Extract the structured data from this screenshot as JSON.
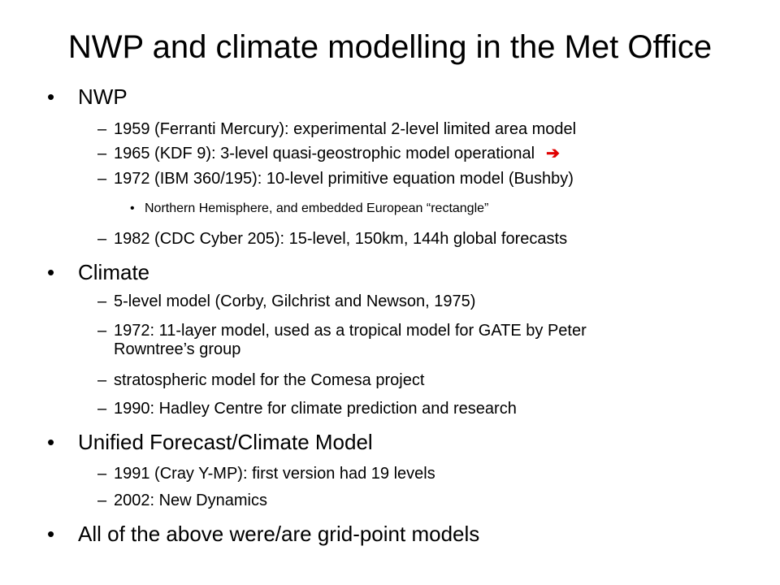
{
  "slide": {
    "title": "NWP and climate modelling in the Met Office",
    "bullet_char": "•",
    "dash_char": "–",
    "arrow_char": "➔",
    "arrow_color": "#e00000",
    "nwp": {
      "label": "NWP",
      "items": [
        "1959 (Ferranti Mercury): experimental 2-level limited area model",
        "1965 (KDF 9): 3-level quasi-geostrophic model operational",
        "1972 (IBM 360/195): 10-level primitive equation model (Bushby)",
        "1982 (CDC Cyber 205): 15-level, 150km, 144h global forecasts"
      ],
      "subitem": "Northern Hemisphere, and embedded European “rectangle”"
    },
    "climate": {
      "label": "Climate",
      "items": [
        "5-level model (Corby, Gilchrist and Newson, 1975)",
        "1972: 11-layer model, used as a tropical model for GATE by Peter Rowntree’s group",
        "stratospheric model for the Comesa project",
        "1990: Hadley Centre for climate prediction and research"
      ]
    },
    "unified": {
      "label": "Unified Forecast/Climate Model",
      "items": [
        "1991 (Cray Y-MP): first version had 19 levels",
        "2002: New Dynamics"
      ]
    },
    "final": {
      "label": "All of the above were/are grid-point models"
    }
  }
}
